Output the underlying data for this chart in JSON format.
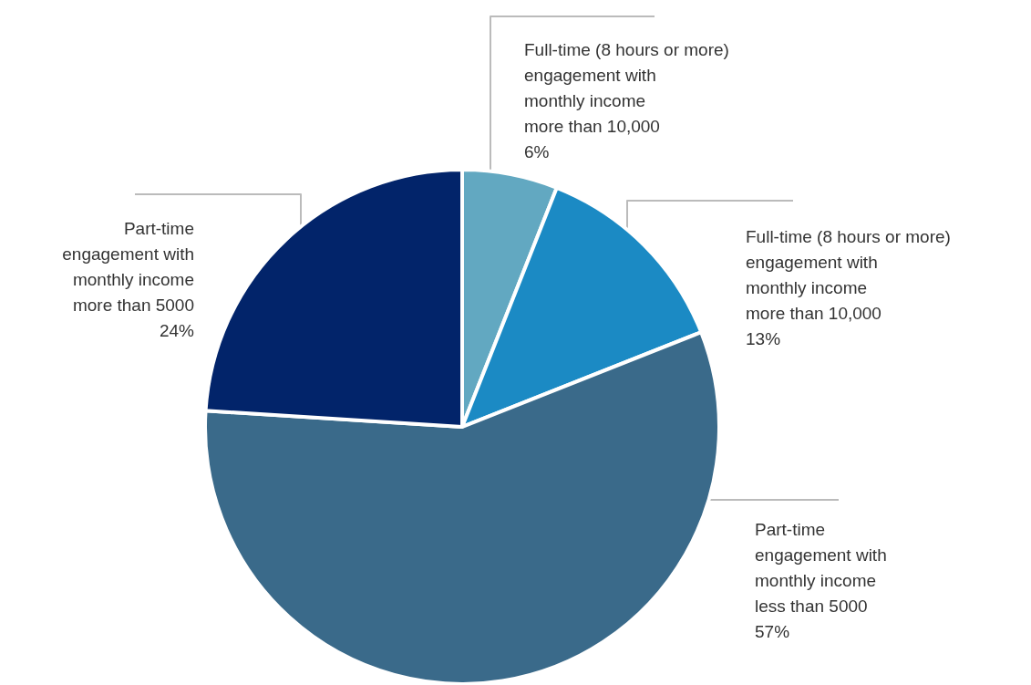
{
  "chart_data": {
    "type": "pie",
    "categories": [
      "Full-time (8 hours or more)\nengagement with\nmonthly income\nmore than 10,000",
      "Full-time (8 hours or more)\nengagement with\nmonthly income\nmore than 10,000",
      "Part-time\nengagement with\nmonthly income\nless than 5000",
      "Part-time\nengagement with\nmonthly income\nmore than 5000"
    ],
    "values": [
      6,
      13,
      57,
      24
    ],
    "colors": [
      "#62a8c1",
      "#1b8ac4",
      "#3a6a8a",
      "#02246a"
    ],
    "value_labels": [
      "6%",
      "13%",
      "57%",
      "24%"
    ],
    "legend": false
  }
}
